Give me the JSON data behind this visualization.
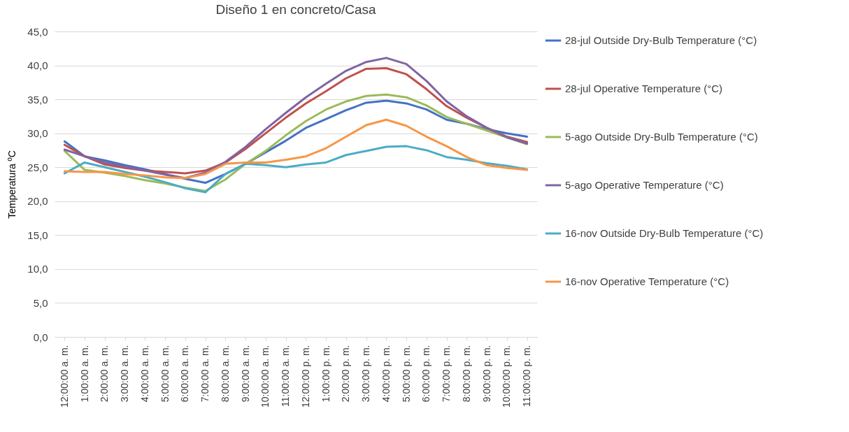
{
  "chart_data": {
    "type": "line",
    "title": "Diseño 1 en concreto/Casa",
    "ylabel": "Temperatura ºC",
    "categories": [
      "12:00:00 a. m.",
      "1:00:00 a. m.",
      "2:00:00 a. m.",
      "3:00:00 a. m.",
      "4:00:00 a. m.",
      "5:00:00 a. m.",
      "6:00:00 a. m.",
      "7:00:00 a. m.",
      "8:00:00 a. m.",
      "9:00:00 a. m.",
      "10:00:00 a. m.",
      "11:00:00 a. m.",
      "12:00:00 p. m.",
      "1:00:00 p. m.",
      "2:00:00 p. m.",
      "3:00:00 p. m.",
      "4:00:00 p. m.",
      "5:00:00 p. m.",
      "6:00:00 p. m.",
      "7:00:00 p. m.",
      "8:00:00 p. m.",
      "9:00:00 p. m.",
      "10:00:00 p. m.",
      "11:00:00 p. m."
    ],
    "series": [
      {
        "name": "28-jul Outside Dry-Bulb Temperature (°C)",
        "color": "#4472c4",
        "values": [
          28.8,
          26.6,
          26.0,
          25.3,
          24.7,
          24.0,
          23.3,
          22.7,
          24.0,
          25.5,
          27.2,
          28.9,
          30.8,
          32.1,
          33.4,
          34.5,
          34.8,
          34.4,
          33.5,
          32.0,
          31.4,
          30.6,
          30.0,
          29.5
        ]
      },
      {
        "name": "28-jul Operative Temperature (°C)",
        "color": "#c0504d",
        "values": [
          28.3,
          26.6,
          25.4,
          24.9,
          24.5,
          24.3,
          24.1,
          24.5,
          25.7,
          27.7,
          30.0,
          32.3,
          34.4,
          36.2,
          38.1,
          39.5,
          39.6,
          38.7,
          36.5,
          34.0,
          32.3,
          30.8,
          29.5,
          28.7
        ]
      },
      {
        "name": "5-ago Outside Dry-Bulb Temperature (°C)",
        "color": "#9bbb59",
        "values": [
          27.4,
          24.6,
          24.2,
          23.7,
          23.1,
          22.6,
          22.0,
          21.5,
          23.2,
          25.5,
          27.4,
          29.7,
          31.8,
          33.5,
          34.7,
          35.5,
          35.7,
          35.3,
          34.1,
          32.4,
          31.4,
          30.4,
          29.4,
          28.4
        ]
      },
      {
        "name": "5-ago Operative Temperature (°C)",
        "color": "#8064a2",
        "values": [
          27.6,
          26.6,
          25.7,
          25.1,
          24.5,
          23.9,
          23.4,
          24.2,
          25.8,
          28.0,
          30.6,
          33.0,
          35.3,
          37.3,
          39.2,
          40.5,
          41.1,
          40.2,
          37.7,
          34.7,
          32.5,
          30.8,
          29.4,
          28.5
        ]
      },
      {
        "name": "16-nov Outside Dry-Bulb Temperature (°C)",
        "color": "#4bacc6",
        "values": [
          24.1,
          25.7,
          25.0,
          24.3,
          23.6,
          22.8,
          21.9,
          21.3,
          24.0,
          25.5,
          25.3,
          25.0,
          25.4,
          25.7,
          26.8,
          27.4,
          28.0,
          28.1,
          27.5,
          26.5,
          26.1,
          25.6,
          25.2,
          24.7
        ]
      },
      {
        "name": "16-nov Operative Temperature (°C)",
        "color": "#f79646",
        "values": [
          24.4,
          24.3,
          24.3,
          24.0,
          23.8,
          23.5,
          23.4,
          24.0,
          25.5,
          25.7,
          25.7,
          26.1,
          26.6,
          27.8,
          29.5,
          31.2,
          32.0,
          31.1,
          29.5,
          28.1,
          26.5,
          25.3,
          24.9,
          24.6
        ]
      }
    ],
    "ylim": [
      0,
      45
    ],
    "yticks": [
      {
        "value": 0,
        "label": "0,0"
      },
      {
        "value": 5,
        "label": "5,0"
      },
      {
        "value": 10,
        "label": "10,0"
      },
      {
        "value": 15,
        "label": "15,0"
      },
      {
        "value": 20,
        "label": "20,0"
      },
      {
        "value": 25,
        "label": "25,0"
      },
      {
        "value": 30,
        "label": "30,0"
      },
      {
        "value": 35,
        "label": "35,0"
      },
      {
        "value": 40,
        "label": "40,0"
      },
      {
        "value": 45,
        "label": "45,0"
      }
    ],
    "grid": "y",
    "legend": "right",
    "marker": "none",
    "line_style": "solid"
  }
}
